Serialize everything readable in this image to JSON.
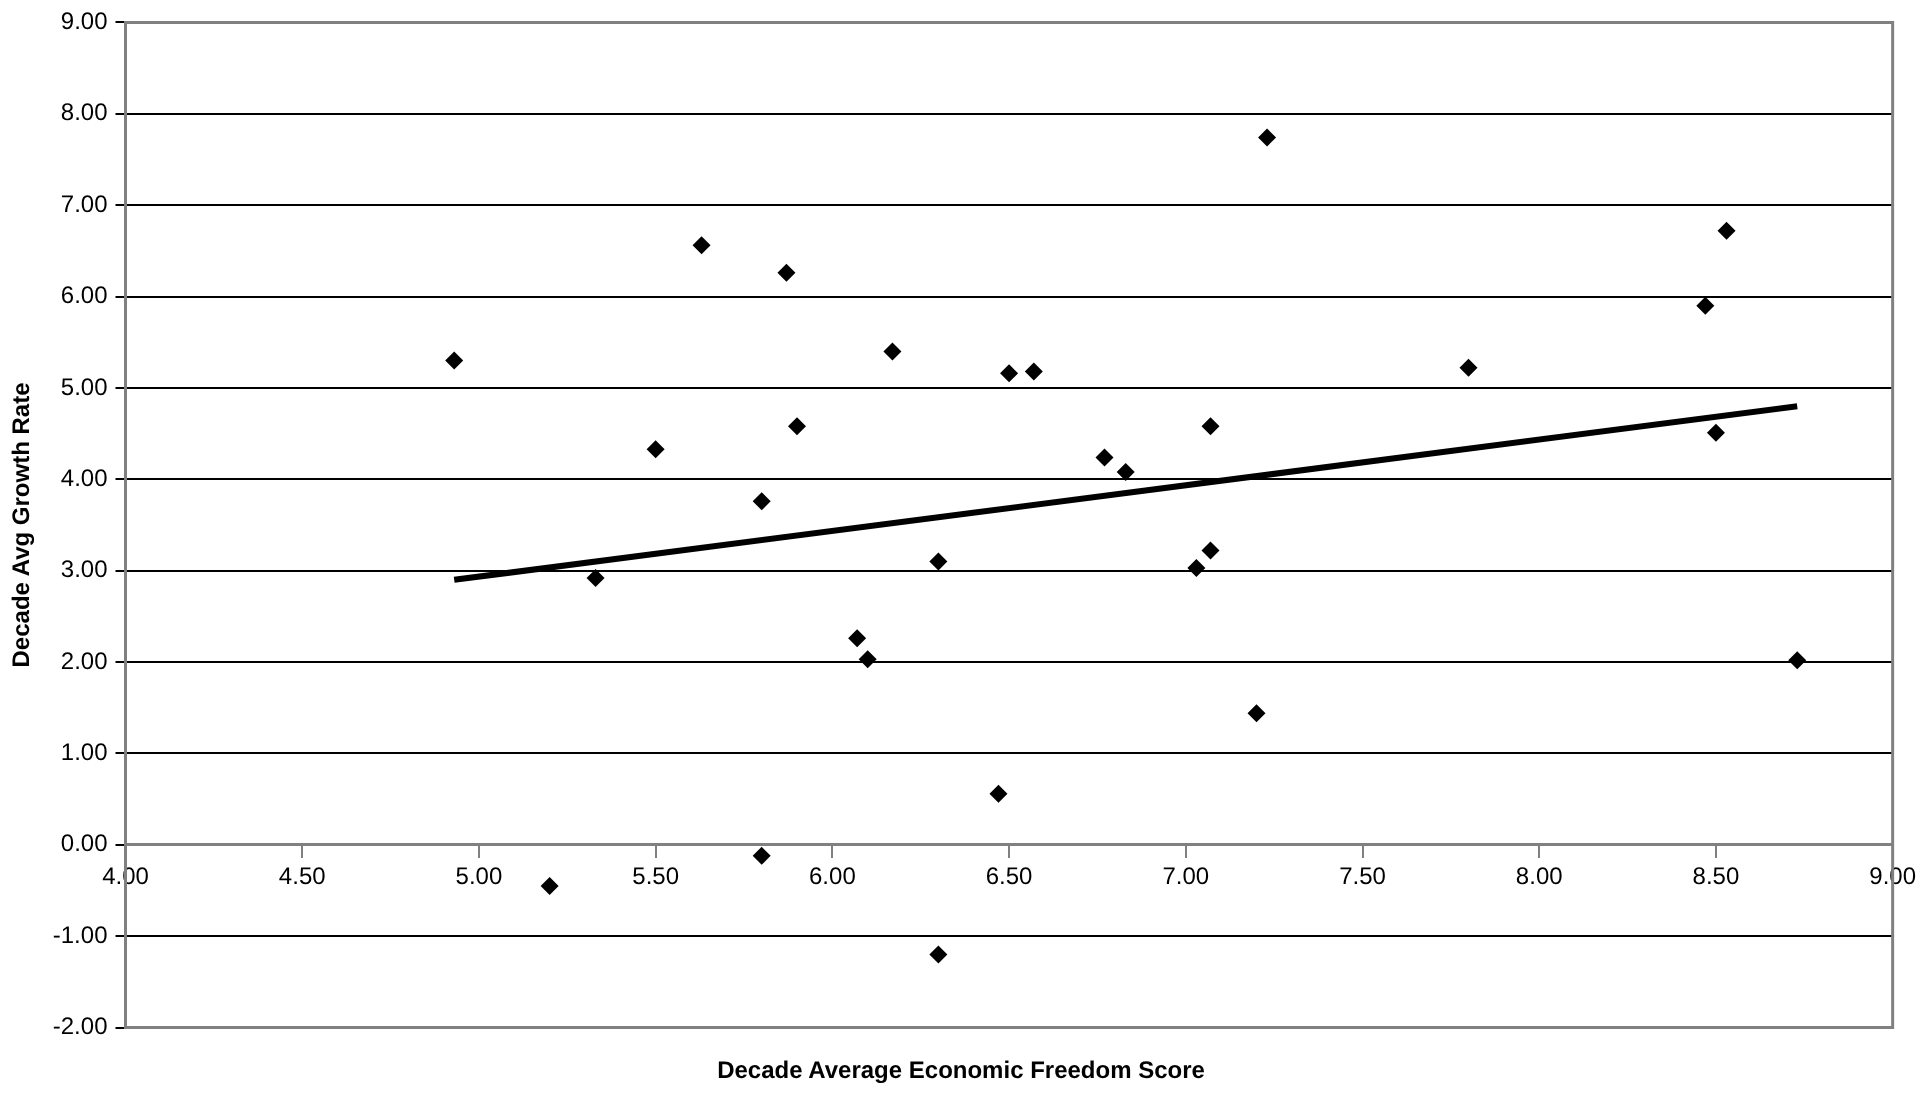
{
  "chart_data": {
    "type": "scatter",
    "xlabel": "Decade Average Economic Freedom Score",
    "ylabel": "Decade Avg Growth Rate",
    "xlim": [
      4,
      9
    ],
    "ylim": [
      -2,
      9
    ],
    "xticks": [
      {
        "value": 4,
        "label": "4.00"
      },
      {
        "value": 4.5,
        "label": "4.50"
      },
      {
        "value": 5,
        "label": "5.00"
      },
      {
        "value": 5.5,
        "label": "5.50"
      },
      {
        "value": 6,
        "label": "6.00"
      },
      {
        "value": 6.5,
        "label": "6.50"
      },
      {
        "value": 7,
        "label": "7.00"
      },
      {
        "value": 7.5,
        "label": "7.50"
      },
      {
        "value": 8,
        "label": "8.00"
      },
      {
        "value": 8.5,
        "label": "8.50"
      },
      {
        "value": 9,
        "label": "9.00"
      }
    ],
    "yticks": [
      {
        "value": -2,
        "label": "-2.00"
      },
      {
        "value": -1,
        "label": "-1.00"
      },
      {
        "value": 0,
        "label": "0.00"
      },
      {
        "value": 1,
        "label": "1.00"
      },
      {
        "value": 2,
        "label": "2.00"
      },
      {
        "value": 3,
        "label": "3.00"
      },
      {
        "value": 4,
        "label": "4.00"
      },
      {
        "value": 5,
        "label": "5.00"
      },
      {
        "value": 6,
        "label": "6.00"
      },
      {
        "value": 7,
        "label": "7.00"
      },
      {
        "value": 8,
        "label": "8.00"
      },
      {
        "value": 9,
        "label": "9.00"
      }
    ],
    "grid": "y",
    "legend": false,
    "marker": "diamond",
    "series": [
      {
        "color": "#000000",
        "x": [
          4.93,
          5.2,
          5.33,
          5.5,
          5.63,
          5.8,
          5.8,
          5.87,
          5.9,
          6.07,
          6.1,
          6.17,
          6.3,
          6.3,
          6.47,
          6.5,
          6.57,
          6.77,
          6.83,
          7.03,
          7.07,
          7.07,
          7.2,
          7.23,
          7.8,
          8.47,
          8.5,
          8.53,
          8.73
        ],
        "values": [
          5.3,
          -0.45,
          2.92,
          4.33,
          6.56,
          3.76,
          -0.12,
          6.26,
          4.58,
          2.26,
          2.03,
          5.4,
          3.1,
          -1.2,
          0.56,
          5.16,
          5.18,
          4.24,
          4.08,
          3.03,
          3.22,
          4.58,
          1.44,
          7.74,
          5.22,
          5.9,
          4.51,
          6.72,
          2.02
        ]
      },
      {
        "type": "line",
        "color": "#000000",
        "marker": "none",
        "line_style": "solid",
        "x": [
          4.93,
          8.73
        ],
        "values": [
          2.9,
          4.8
        ]
      }
    ]
  }
}
